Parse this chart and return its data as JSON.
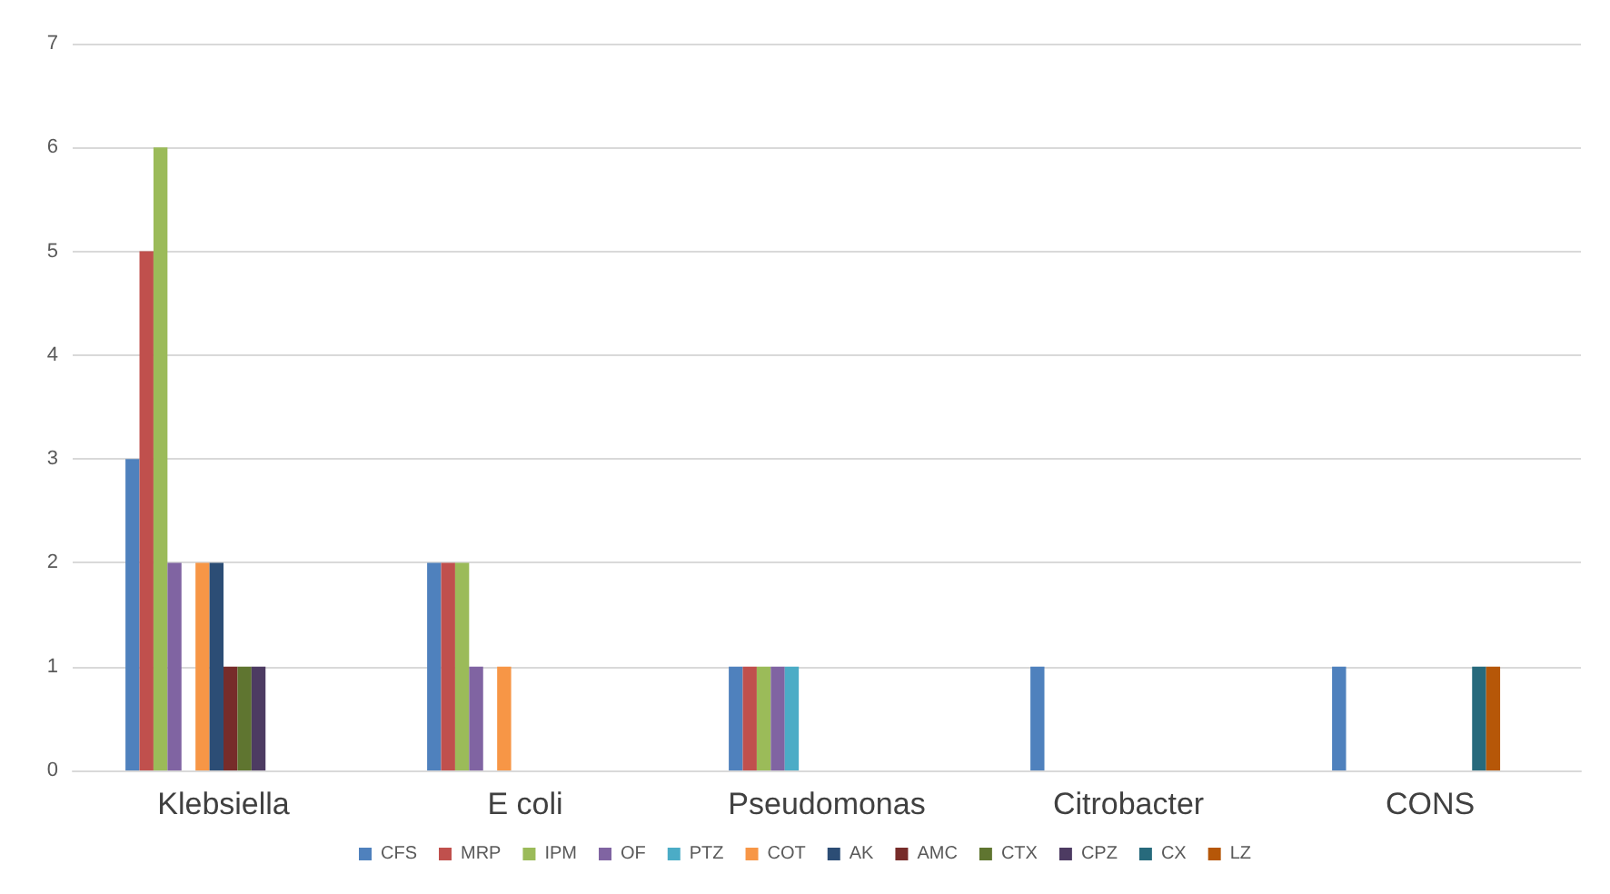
{
  "chart_data": {
    "type": "bar",
    "categories": [
      "Klebsiella",
      "E coli",
      "Pseudomonas",
      "Citrobacter",
      "CONS"
    ],
    "ylim": [
      0,
      7
    ],
    "yticks": [
      0,
      1,
      2,
      3,
      4,
      5,
      6,
      7
    ],
    "grid": "y",
    "legend": "bottom",
    "series": [
      {
        "name": "CFS",
        "color": "#4f81bd",
        "values": [
          3,
          2,
          1,
          1,
          1
        ]
      },
      {
        "name": "MRP",
        "color": "#c0504d",
        "values": [
          5,
          2,
          1,
          null,
          null
        ]
      },
      {
        "name": "IPM",
        "color": "#9bbb59",
        "values": [
          6,
          2,
          1,
          null,
          null
        ]
      },
      {
        "name": "OF",
        "color": "#8064a2",
        "values": [
          2,
          1,
          1,
          null,
          null
        ]
      },
      {
        "name": "PTZ",
        "color": "#4bacc6",
        "values": [
          null,
          null,
          1,
          null,
          null
        ]
      },
      {
        "name": "COT",
        "color": "#f79646",
        "values": [
          2,
          1,
          null,
          null,
          null
        ]
      },
      {
        "name": "AK",
        "color": "#2c4d75",
        "values": [
          2,
          null,
          null,
          null,
          null
        ]
      },
      {
        "name": "AMC",
        "color": "#772c2a",
        "values": [
          1,
          null,
          null,
          null,
          null
        ]
      },
      {
        "name": "CTX",
        "color": "#5f7530",
        "values": [
          1,
          null,
          null,
          null,
          null
        ]
      },
      {
        "name": "CPZ",
        "color": "#4d3b62",
        "values": [
          1,
          null,
          null,
          null,
          null
        ]
      },
      {
        "name": "CX",
        "color": "#276a7c",
        "values": [
          null,
          null,
          null,
          null,
          1
        ]
      },
      {
        "name": "LZ",
        "color": "#b65708",
        "values": [
          null,
          null,
          null,
          null,
          1
        ]
      },
      {
        "color": "#729aca",
        "values": [
          null,
          null,
          null,
          null,
          null
        ]
      },
      {
        "color": "#cd7371",
        "values": [
          null,
          null,
          null,
          null,
          null
        ]
      }
    ]
  }
}
